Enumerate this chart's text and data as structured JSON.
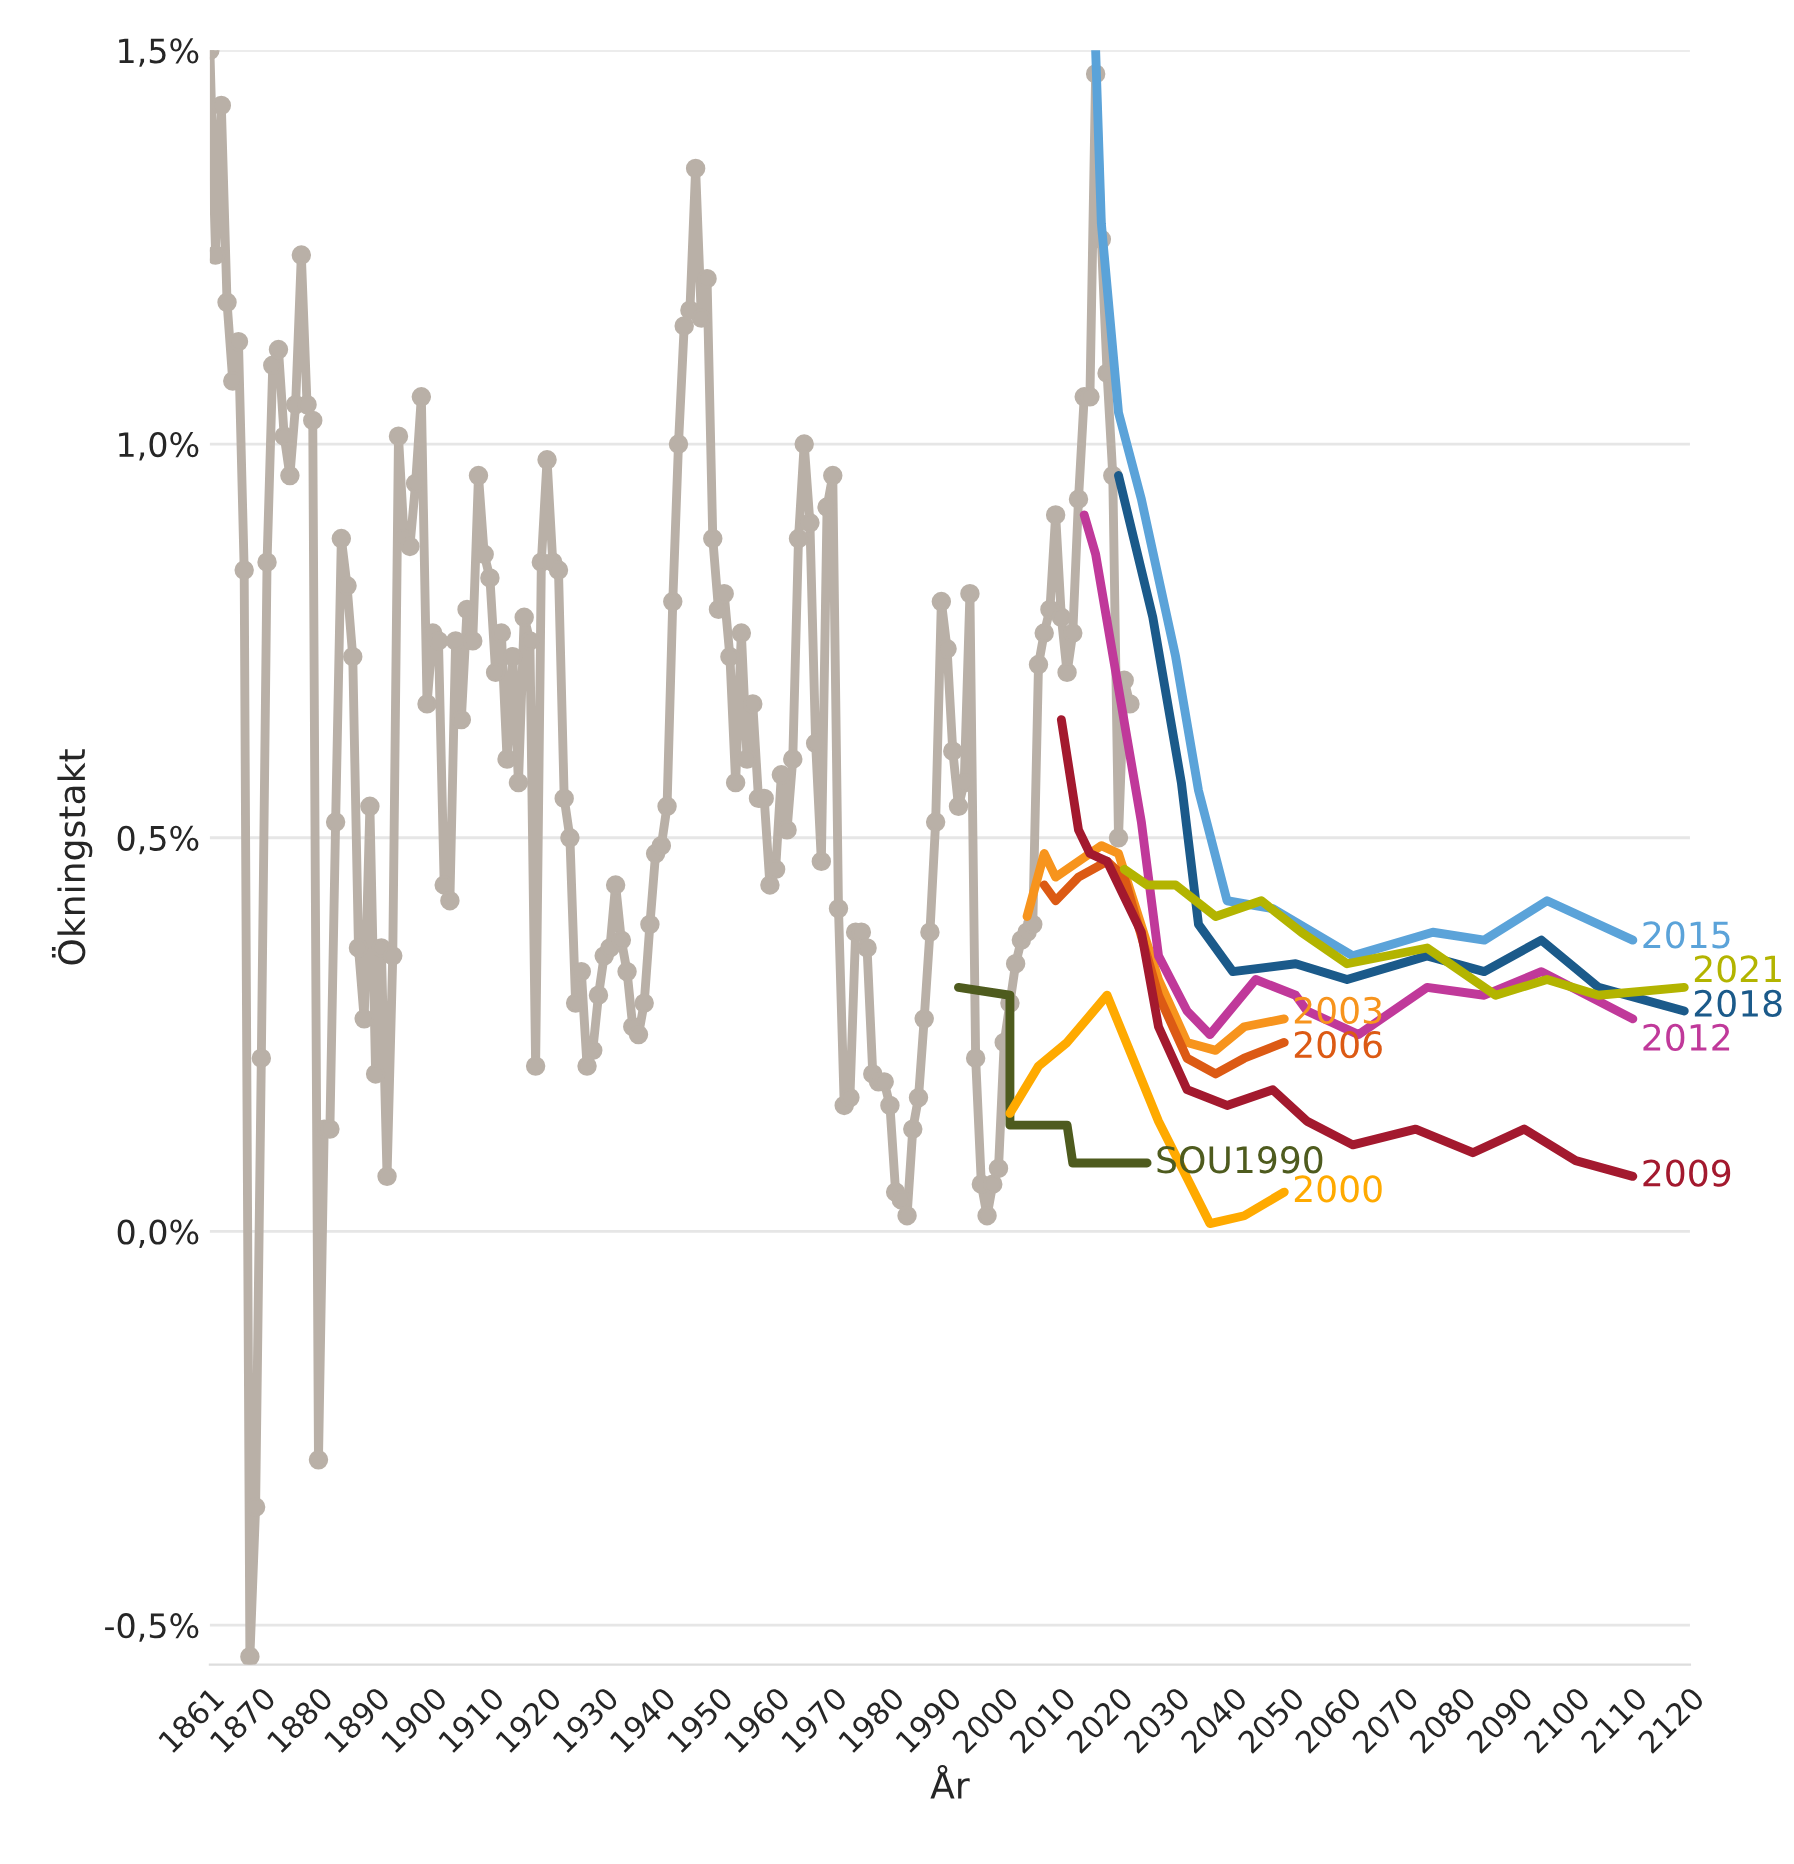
{
  "chart_data": {
    "type": "line",
    "xlabel": "År",
    "ylabel": "Ökningstakt",
    "xlim": [
      1861,
      2120
    ],
    "xticks": [
      1861,
      1870,
      1880,
      1890,
      1900,
      1910,
      1920,
      1930,
      1940,
      1950,
      1960,
      1970,
      1980,
      1990,
      2000,
      2010,
      2020,
      2030,
      2040,
      2050,
      2060,
      2070,
      2080,
      2090,
      2100,
      2110,
      2120
    ],
    "ylim": [
      -0.55,
      1.5
    ],
    "yticks": [
      {
        "value": -0.5,
        "label": "-0,5%"
      },
      {
        "value": 0,
        "label": "0,0%"
      },
      {
        "value": 0.5,
        "label": "0,5%"
      },
      {
        "value": 1.0,
        "label": "1,0%"
      },
      {
        "value": 1.5,
        "label": "1,5%"
      }
    ],
    "grid": "y",
    "legend": false,
    "series": [
      {
        "color": "#b9b0a7",
        "marker": "circle",
        "x": [
          1861,
          1862,
          1863,
          1864,
          1865,
          1866,
          1867,
          1868,
          1869,
          1870,
          1871,
          1872,
          1873,
          1874,
          1875,
          1876,
          1877,
          1878,
          1879,
          1880,
          1881,
          1882,
          1883,
          1884,
          1885,
          1886,
          1887,
          1888,
          1889,
          1890,
          1891,
          1892,
          1893,
          1894,
          1895,
          1896,
          1897,
          1898,
          1899,
          1900,
          1901,
          1902,
          1903,
          1904,
          1905,
          1906,
          1907,
          1908,
          1909,
          1910,
          1911,
          1912,
          1913,
          1914,
          1915,
          1916,
          1917,
          1918,
          1919,
          1920,
          1921,
          1922,
          1923,
          1924,
          1925,
          1926,
          1927,
          1928,
          1929,
          1930,
          1931,
          1932,
          1933,
          1934,
          1935,
          1936,
          1937,
          1938,
          1939,
          1940,
          1941,
          1942,
          1943,
          1944,
          1945,
          1946,
          1947,
          1948,
          1949,
          1950,
          1951,
          1952,
          1953,
          1954,
          1955,
          1956,
          1957,
          1958,
          1959,
          1960,
          1961,
          1962,
          1963,
          1964,
          1965,
          1966,
          1967,
          1968,
          1969,
          1970,
          1971,
          1972,
          1973,
          1974,
          1975,
          1976,
          1977,
          1978,
          1979,
          1980,
          1981,
          1982,
          1983,
          1984,
          1985,
          1986,
          1987,
          1988,
          1989,
          1990,
          1991,
          1992,
          1993,
          1994,
          1995,
          1996,
          1997,
          1998,
          1999,
          2000,
          2001,
          2002,
          2003,
          2004,
          2005,
          2006,
          2007,
          2008,
          2009,
          2010,
          2011,
          2012,
          2013,
          2014,
          2015,
          2016,
          2017,
          2018,
          2019,
          2020,
          2021,
          2022
        ],
        "values": [
          1.5,
          1.24,
          1.43,
          1.18,
          1.08,
          1.13,
          0.84,
          -0.54,
          -0.35,
          0.22,
          0.85,
          1.1,
          1.12,
          1.01,
          0.96,
          1.05,
          1.24,
          1.05,
          1.03,
          -0.29,
          0.13,
          0.13,
          0.52,
          0.88,
          0.82,
          0.73,
          0.36,
          0.27,
          0.54,
          0.2,
          0.36,
          0.07,
          0.35,
          1.01,
          0.88,
          0.87,
          0.95,
          1.06,
          0.67,
          0.76,
          0.75,
          0.44,
          0.42,
          0.75,
          0.65,
          0.79,
          0.75,
          0.96,
          0.86,
          0.83,
          0.71,
          0.76,
          0.6,
          0.73,
          0.57,
          0.78,
          0.75,
          0.21,
          0.85,
          0.98,
          0.85,
          0.84,
          0.55,
          0.5,
          0.29,
          0.33,
          0.21,
          0.23,
          0.3,
          0.35,
          0.36,
          0.44,
          0.37,
          0.33,
          0.26,
          0.25,
          0.29,
          0.39,
          0.48,
          0.49,
          0.54,
          0.8,
          1.0,
          1.15,
          1.17,
          1.35,
          1.16,
          1.21,
          0.88,
          0.79,
          0.81,
          0.73,
          0.57,
          0.76,
          0.6,
          0.67,
          0.55,
          0.55,
          0.44,
          0.46,
          0.58,
          0.51,
          0.6,
          0.88,
          1.0,
          0.9,
          0.62,
          0.47,
          0.92,
          0.96,
          0.41,
          0.16,
          0.17,
          0.38,
          0.38,
          0.36,
          0.2,
          0.19,
          0.19,
          0.16,
          0.05,
          0.04,
          0.02,
          0.13,
          0.17,
          0.27,
          0.38,
          0.52,
          0.8,
          0.74,
          0.61,
          0.54,
          0.57,
          0.81,
          0.22,
          0.06,
          0.02,
          0.06,
          0.08,
          0.24,
          0.29,
          0.34,
          0.37,
          0.38,
          0.39,
          0.72,
          0.76,
          0.79,
          0.91,
          0.78,
          0.71,
          0.76,
          0.93,
          1.06,
          1.06,
          1.47,
          1.26,
          1.09,
          0.96,
          0.5,
          0.7,
          0.67
        ]
      },
      {
        "name": "SOU1990",
        "color": "#4e5b1e",
        "x": [
          1992,
          2001,
          2001,
          2011,
          2012,
          2025
        ],
        "values": [
          0.31,
          0.3,
          0.135,
          0.135,
          0.087,
          0.087
        ]
      },
      {
        "name": "2000",
        "color": "#ffaa00",
        "x": [
          2001,
          2006,
          2011,
          2018,
          2027,
          2036,
          2042,
          2049
        ],
        "values": [
          0.15,
          0.21,
          0.24,
          0.3,
          0.14,
          0.01,
          0.02,
          0.05
        ]
      },
      {
        "name": "2003",
        "color": "#f7941d",
        "x": [
          2004,
          2007,
          2009,
          2013,
          2017,
          2020,
          2027,
          2032,
          2037,
          2042,
          2049
        ],
        "values": [
          0.4,
          0.48,
          0.45,
          0.47,
          0.49,
          0.48,
          0.32,
          0.24,
          0.23,
          0.26,
          0.27
        ]
      },
      {
        "name": "2006",
        "color": "#dc5a14",
        "x": [
          2007,
          2009,
          2013,
          2018,
          2021,
          2027,
          2032,
          2037,
          2042,
          2049
        ],
        "values": [
          0.44,
          0.42,
          0.45,
          0.47,
          0.45,
          0.3,
          0.22,
          0.2,
          0.22,
          0.24
        ]
      },
      {
        "name": "2009",
        "color": "#a3192e",
        "x": [
          2010,
          2013,
          2015,
          2018,
          2024,
          2027,
          2032,
          2039,
          2047,
          2053,
          2061,
          2072,
          2082,
          2091,
          2100,
          2110
        ],
        "values": [
          0.65,
          0.51,
          0.48,
          0.47,
          0.38,
          0.26,
          0.18,
          0.16,
          0.18,
          0.14,
          0.11,
          0.13,
          0.1,
          0.13,
          0.09,
          0.07
        ]
      },
      {
        "name": "2012",
        "color": "#c0399a",
        "x": [
          2014,
          2016,
          2020,
          2024,
          2027,
          2032,
          2036,
          2044,
          2051,
          2053,
          2062,
          2074,
          2084,
          2094,
          2110
        ],
        "values": [
          0.91,
          0.86,
          0.69,
          0.52,
          0.35,
          0.28,
          0.25,
          0.32,
          0.3,
          0.28,
          0.25,
          0.31,
          0.3,
          0.33,
          0.27
        ]
      },
      {
        "name": "2015",
        "color": "#5ba3d9",
        "x": [
          2016,
          2017,
          2020,
          2024,
          2030,
          2034,
          2039,
          2047,
          2061,
          2075,
          2084,
          2095,
          2110
        ],
        "values": [
          1.5,
          1.28,
          1.04,
          0.93,
          0.73,
          0.56,
          0.42,
          0.41,
          0.35,
          0.38,
          0.37,
          0.42,
          0.37
        ]
      },
      {
        "name": "2018",
        "color": "#1b5a8a",
        "x": [
          2020,
          2026,
          2031,
          2034,
          2040,
          2051,
          2060,
          2074,
          2084,
          2094,
          2104,
          2119
        ],
        "values": [
          0.96,
          0.78,
          0.57,
          0.39,
          0.33,
          0.34,
          0.32,
          0.35,
          0.33,
          0.37,
          0.31,
          0.28
        ]
      },
      {
        "name": "2021",
        "color": "#b3b400",
        "x": [
          2021,
          2025,
          2030,
          2037,
          2045,
          2052,
          2060,
          2074,
          2086,
          2095,
          2104,
          2119
        ],
        "values": [
          0.46,
          0.44,
          0.44,
          0.4,
          0.42,
          0.38,
          0.34,
          0.36,
          0.3,
          0.32,
          0.3,
          0.31
        ]
      }
    ]
  }
}
